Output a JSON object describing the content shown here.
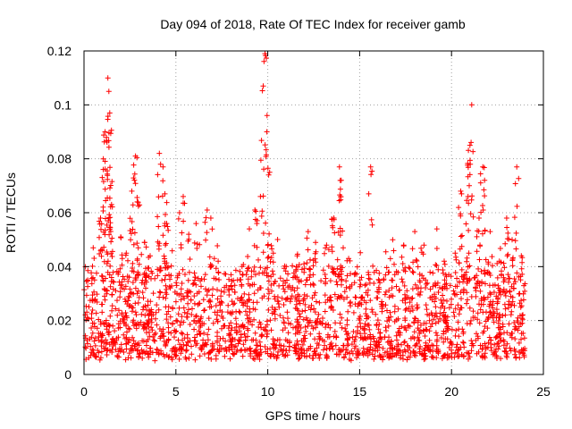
{
  "chart_data": {
    "type": "scatter",
    "title": "Day 094 of 2018, Rate Of TEC Index for receiver gamb",
    "xlabel": "GPS time / hours",
    "ylabel": "ROTI / TECUs",
    "xlim": [
      0,
      25
    ],
    "ylim": [
      0,
      0.12
    ],
    "xticks": [
      0,
      5,
      10,
      15,
      20,
      25
    ],
    "xtick_labels": [
      "0",
      "5",
      "10",
      "15",
      "20",
      "25"
    ],
    "yticks": [
      0,
      0.02,
      0.04,
      0.06,
      0.08,
      0.1,
      0.12
    ],
    "ytick_labels": [
      "0",
      "0.02",
      "0.04",
      "0.06",
      "0.08",
      "0.1",
      "0.12"
    ],
    "grid": true,
    "marker": "+",
    "color": "#ff0000",
    "series": [
      {
        "name": "ROTI",
        "peaks": [
          {
            "x": 0.2,
            "y": 0.035
          },
          {
            "x": 0.5,
            "y": 0.047
          },
          {
            "x": 0.9,
            "y": 0.058
          },
          {
            "x": 1.05,
            "y": 0.08
          },
          {
            "x": 1.15,
            "y": 0.09
          },
          {
            "x": 1.3,
            "y": 0.11
          },
          {
            "x": 1.35,
            "y": 0.105
          },
          {
            "x": 1.4,
            "y": 0.097
          },
          {
            "x": 1.5,
            "y": 0.063
          },
          {
            "x": 2.0,
            "y": 0.051
          },
          {
            "x": 2.3,
            "y": 0.045
          },
          {
            "x": 2.6,
            "y": 0.068
          },
          {
            "x": 2.8,
            "y": 0.081
          },
          {
            "x": 2.9,
            "y": 0.064
          },
          {
            "x": 3.3,
            "y": 0.049
          },
          {
            "x": 3.6,
            "y": 0.044
          },
          {
            "x": 4.1,
            "y": 0.082
          },
          {
            "x": 4.3,
            "y": 0.077
          },
          {
            "x": 4.4,
            "y": 0.067
          },
          {
            "x": 4.5,
            "y": 0.056
          },
          {
            "x": 5.2,
            "y": 0.06
          },
          {
            "x": 5.4,
            "y": 0.066
          },
          {
            "x": 5.7,
            "y": 0.052
          },
          {
            "x": 6.1,
            "y": 0.056
          },
          {
            "x": 6.7,
            "y": 0.061
          },
          {
            "x": 6.9,
            "y": 0.058
          },
          {
            "x": 7.3,
            "y": 0.042
          },
          {
            "x": 8.0,
            "y": 0.037
          },
          {
            "x": 8.6,
            "y": 0.04
          },
          {
            "x": 9.0,
            "y": 0.054
          },
          {
            "x": 9.3,
            "y": 0.061
          },
          {
            "x": 9.6,
            "y": 0.066
          },
          {
            "x": 9.75,
            "y": 0.107
          },
          {
            "x": 9.85,
            "y": 0.119
          },
          {
            "x": 9.95,
            "y": 0.09
          },
          {
            "x": 10.1,
            "y": 0.075
          },
          {
            "x": 10.3,
            "y": 0.045
          },
          {
            "x": 11.0,
            "y": 0.04
          },
          {
            "x": 11.6,
            "y": 0.044
          },
          {
            "x": 12.2,
            "y": 0.053
          },
          {
            "x": 12.6,
            "y": 0.049
          },
          {
            "x": 13.2,
            "y": 0.048
          },
          {
            "x": 13.6,
            "y": 0.058
          },
          {
            "x": 13.9,
            "y": 0.077
          },
          {
            "x": 14.0,
            "y": 0.072
          },
          {
            "x": 14.4,
            "y": 0.043
          },
          {
            "x": 15.1,
            "y": 0.036
          },
          {
            "x": 15.6,
            "y": 0.077
          },
          {
            "x": 16.1,
            "y": 0.034
          },
          {
            "x": 16.8,
            "y": 0.05
          },
          {
            "x": 17.4,
            "y": 0.048
          },
          {
            "x": 18.0,
            "y": 0.053
          },
          {
            "x": 18.5,
            "y": 0.048
          },
          {
            "x": 19.2,
            "y": 0.054
          },
          {
            "x": 19.6,
            "y": 0.042
          },
          {
            "x": 20.2,
            "y": 0.045
          },
          {
            "x": 20.5,
            "y": 0.068
          },
          {
            "x": 20.9,
            "y": 0.066
          },
          {
            "x": 21.0,
            "y": 0.085
          },
          {
            "x": 21.1,
            "y": 0.1
          },
          {
            "x": 21.5,
            "y": 0.058
          },
          {
            "x": 21.7,
            "y": 0.077
          },
          {
            "x": 21.8,
            "y": 0.072
          },
          {
            "x": 22.1,
            "y": 0.053
          },
          {
            "x": 22.6,
            "y": 0.042
          },
          {
            "x": 23.0,
            "y": 0.058
          },
          {
            "x": 23.3,
            "y": 0.05
          },
          {
            "x": 23.55,
            "y": 0.077
          },
          {
            "x": 23.8,
            "y": 0.044
          }
        ],
        "baseline_range": [
          0.005,
          0.03
        ]
      }
    ]
  }
}
